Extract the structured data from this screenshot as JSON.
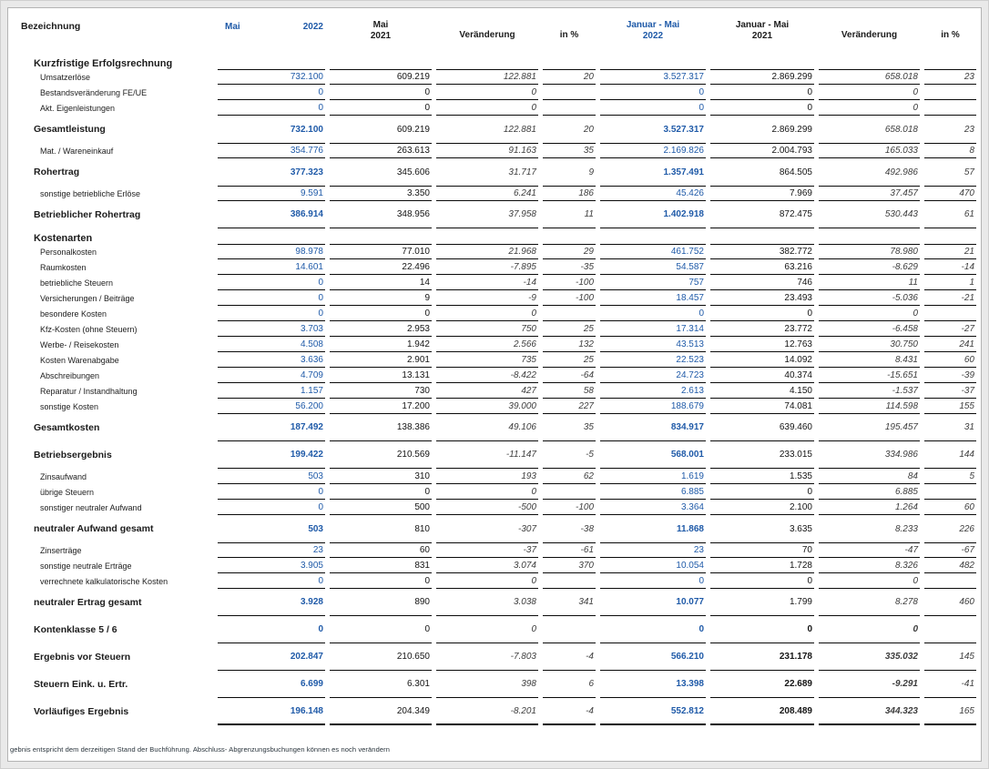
{
  "header": {
    "label": "Bezeichnung",
    "col1_period": "Mai",
    "col1_year": "2022",
    "col2": [
      "Mai",
      "2021"
    ],
    "col3": "Veränderung",
    "col4": "in %",
    "col5": [
      "Januar - Mai",
      "2022"
    ],
    "col6": [
      "Januar - Mai",
      "2021"
    ],
    "col7": "Veränderung",
    "col8": "in %"
  },
  "colors": {
    "accent_blue": "#1f5aa8",
    "value_black": "#141414",
    "change_italic_gray": "#3d3d3d",
    "rule_black": "#0a0a0a",
    "page_background": "#ffffff",
    "frame_background": "#e9e9e9"
  },
  "table": {
    "rows": [
      {
        "type": "section",
        "label": "Kurzfristige Erfolgsrechnung",
        "values": []
      },
      {
        "type": "item",
        "label": "Umsatzerlöse",
        "rule_above": true,
        "rule_below": true,
        "values": [
          "732.100",
          "609.219",
          "122.881",
          "20",
          "3.527.317",
          "2.869.299",
          "658.018",
          "23"
        ]
      },
      {
        "type": "item",
        "label": "Bestandsveränderung FE/UE",
        "rule_below": true,
        "values": [
          "0",
          "0",
          "0",
          "",
          "0",
          "0",
          "0",
          ""
        ]
      },
      {
        "type": "item",
        "label": "Akt. Eigenleistungen",
        "rule_below": true,
        "values": [
          "0",
          "0",
          "0",
          "",
          "0",
          "0",
          "0",
          ""
        ]
      },
      {
        "type": "total",
        "label": "Gesamtleistung",
        "values": [
          "732.100",
          "609.219",
          "122.881",
          "20",
          "3.527.317",
          "2.869.299",
          "658.018",
          "23"
        ]
      },
      {
        "type": "item",
        "label": "Mat. / Wareneinkauf",
        "rule_above": true,
        "rule_below": true,
        "values": [
          "354.776",
          "263.613",
          "91.163",
          "35",
          "2.169.826",
          "2.004.793",
          "165.033",
          "8"
        ]
      },
      {
        "type": "total",
        "label": "Rohertrag",
        "values": [
          "377.323",
          "345.606",
          "31.717",
          "9",
          "1.357.491",
          "864.505",
          "492.986",
          "57"
        ]
      },
      {
        "type": "item",
        "label": "sonstige betriebliche Erlöse",
        "rule_above": true,
        "rule_below": true,
        "values": [
          "9.591",
          "3.350",
          "6.241",
          "186",
          "45.426",
          "7.969",
          "37.457",
          "470"
        ]
      },
      {
        "type": "total",
        "label": "Betrieblicher Rohertrag",
        "rule_below": true,
        "values": [
          "386.914",
          "348.956",
          "37.958",
          "11",
          "1.402.918",
          "872.475",
          "530.443",
          "61"
        ]
      },
      {
        "type": "section",
        "label": "Kostenarten",
        "values": []
      },
      {
        "type": "item",
        "label": "Personalkosten",
        "rule_above": true,
        "rule_below": true,
        "values": [
          "98.978",
          "77.010",
          "21.968",
          "29",
          "461.752",
          "382.772",
          "78.980",
          "21"
        ]
      },
      {
        "type": "item",
        "label": "Raumkosten",
        "rule_below": true,
        "values": [
          "14.601",
          "22.496",
          "-7.895",
          "-35",
          "54.587",
          "63.216",
          "-8.629",
          "-14"
        ]
      },
      {
        "type": "item",
        "label": "betriebliche Steuern",
        "rule_below": true,
        "values": [
          "0",
          "14",
          "-14",
          "-100",
          "757",
          "746",
          "11",
          "1"
        ]
      },
      {
        "type": "item",
        "label": "Versicherungen / Beiträge",
        "rule_below": true,
        "values": [
          "0",
          "9",
          "-9",
          "-100",
          "18.457",
          "23.493",
          "-5.036",
          "-21"
        ]
      },
      {
        "type": "item",
        "label": "besondere Kosten",
        "rule_below": true,
        "values": [
          "0",
          "0",
          "0",
          "",
          "0",
          "0",
          "0",
          ""
        ]
      },
      {
        "type": "item",
        "label": "Kfz-Kosten (ohne Steuern)",
        "rule_below": true,
        "values": [
          "3.703",
          "2.953",
          "750",
          "25",
          "17.314",
          "23.772",
          "-6.458",
          "-27"
        ]
      },
      {
        "type": "item",
        "label": "Werbe- / Reisekosten",
        "rule_below": true,
        "values": [
          "4.508",
          "1.942",
          "2.566",
          "132",
          "43.513",
          "12.763",
          "30.750",
          "241"
        ]
      },
      {
        "type": "item",
        "label": "Kosten Warenabgabe",
        "rule_below": true,
        "values": [
          "3.636",
          "2.901",
          "735",
          "25",
          "22.523",
          "14.092",
          "8.431",
          "60"
        ]
      },
      {
        "type": "item",
        "label": "Abschreibungen",
        "rule_below": true,
        "values": [
          "4.709",
          "13.131",
          "-8.422",
          "-64",
          "24.723",
          "40.374",
          "-15.651",
          "-39"
        ]
      },
      {
        "type": "item",
        "label": "Reparatur / Instandhaltung",
        "rule_below": true,
        "values": [
          "1.157",
          "730",
          "427",
          "58",
          "2.613",
          "4.150",
          "-1.537",
          "-37"
        ]
      },
      {
        "type": "item",
        "label": "sonstige Kosten",
        "rule_below": true,
        "values": [
          "56.200",
          "17.200",
          "39.000",
          "227",
          "188.679",
          "74.081",
          "114.598",
          "155"
        ]
      },
      {
        "type": "total",
        "label": "Gesamtkosten",
        "rule_below": true,
        "values": [
          "187.492",
          "138.386",
          "49.106",
          "35",
          "834.917",
          "639.460",
          "195.457",
          "31"
        ]
      },
      {
        "type": "total",
        "label": "Betriebsergebnis",
        "rule_below": true,
        "values": [
          "199.422",
          "210.569",
          "-11.147",
          "-5",
          "568.001",
          "233.015",
          "334.986",
          "144"
        ]
      },
      {
        "type": "item",
        "label": "Zinsaufwand",
        "rule_below": true,
        "values": [
          "503",
          "310",
          "193",
          "62",
          "1.619",
          "1.535",
          "84",
          "5"
        ]
      },
      {
        "type": "item",
        "label": "übrige Steuern",
        "rule_below": true,
        "values": [
          "0",
          "0",
          "0",
          "",
          "6.885",
          "0",
          "6.885",
          ""
        ]
      },
      {
        "type": "item",
        "label": "sonstiger neutraler Aufwand",
        "rule_below": true,
        "values": [
          "0",
          "500",
          "-500",
          "-100",
          "3.364",
          "2.100",
          "1.264",
          "60"
        ]
      },
      {
        "type": "total",
        "label": "neutraler Aufwand gesamt",
        "values": [
          "503",
          "810",
          "-307",
          "-38",
          "11.868",
          "3.635",
          "8.233",
          "226"
        ]
      },
      {
        "type": "item",
        "label": "Zinserträge",
        "rule_above": true,
        "rule_below": true,
        "values": [
          "23",
          "60",
          "-37",
          "-61",
          "23",
          "70",
          "-47",
          "-67"
        ]
      },
      {
        "type": "item",
        "label": "sonstige neutrale Erträge",
        "rule_below": true,
        "values": [
          "3.905",
          "831",
          "3.074",
          "370",
          "10.054",
          "1.728",
          "8.326",
          "482"
        ]
      },
      {
        "type": "item",
        "label": "verrechnete kalkulatorische Kosten",
        "rule_below": true,
        "values": [
          "0",
          "0",
          "0",
          "",
          "0",
          "0",
          "0",
          ""
        ]
      },
      {
        "type": "total",
        "label": "neutraler Ertrag gesamt",
        "rule_below": true,
        "values": [
          "3.928",
          "890",
          "3.038",
          "341",
          "10.077",
          "1.799",
          "8.278",
          "460"
        ]
      },
      {
        "type": "total",
        "label": "Kontenklasse 5 / 6",
        "rule_below": true,
        "strong_right": true,
        "values": [
          "0",
          "0",
          "0",
          "",
          "0",
          "0",
          "0",
          ""
        ]
      },
      {
        "type": "total",
        "label": "Ergebnis vor Steuern",
        "rule_below": true,
        "strong_right": true,
        "values": [
          "202.847",
          "210.650",
          "-7.803",
          "-4",
          "566.210",
          "231.178",
          "335.032",
          "145"
        ]
      },
      {
        "type": "total",
        "label": "Steuern Eink. u. Ertr.",
        "rule_below": true,
        "strong_right": true,
        "values": [
          "6.699",
          "6.301",
          "398",
          "6",
          "13.398",
          "22.689",
          "-9.291",
          "-41"
        ]
      },
      {
        "type": "total",
        "label": "Vorläufiges Ergebnis",
        "thick": true,
        "strong_right": true,
        "values": [
          "196.148",
          "204.349",
          "-8.201",
          "-4",
          "552.812",
          "208.489",
          "344.323",
          "165"
        ]
      }
    ]
  },
  "footer": {
    "text": "gebnis entspricht dem derzeitigen Stand der Buchführung. Abschluss- Abgrenzungsbuchungen  können es noch verändern"
  }
}
